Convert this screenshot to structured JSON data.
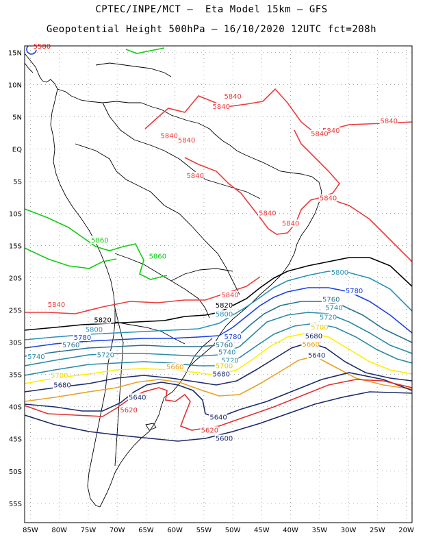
{
  "header": {
    "line1": "CPTEC/INPE/MCT –  Eta Model 15km – GFS",
    "line2": "Geopotential Height 500hPa – 16/10/2020 12UTC fct=208h"
  },
  "map": {
    "lon_range": [
      -86,
      -19
    ],
    "lat_range": [
      -58,
      16
    ],
    "lat_ticks": [
      "15N",
      "10N",
      "5N",
      "EQ",
      "5S",
      "10S",
      "15S",
      "20S",
      "25S",
      "30S",
      "35S",
      "40S",
      "45S",
      "50S",
      "55S"
    ],
    "lon_ticks": [
      "85W",
      "80W",
      "75W",
      "70W",
      "65W",
      "60W",
      "55W",
      "50W",
      "45W",
      "40W",
      "35W",
      "30W",
      "25W",
      "20W"
    ],
    "colors": {
      "5580": "#ff2020",
      "5600": "#1a2a6a",
      "5620": "#e03030",
      "5640": "#1a2a6a",
      "5660": "#e8a020",
      "5680": "#1a2a6a",
      "5700": "#ffee00",
      "5720": "#2a8aa8",
      "5740": "#2a8aa8",
      "5760": "#2a7090",
      "5780": "#1a40e0",
      "5800": "#2a90b8",
      "5820": "#000000",
      "5840": "#ee3a3a",
      "5860": "#00cc00"
    },
    "contour_labels": [
      {
        "text": "5840",
        "lon": -51.5,
        "lat": 7.8,
        "level": "5840"
      },
      {
        "text": "5840",
        "lon": -53.5,
        "lat": 6.2,
        "level": "5840"
      },
      {
        "text": "5840",
        "lon": -24.5,
        "lat": 4.0,
        "level": "5840"
      },
      {
        "text": "5840",
        "lon": -34.5,
        "lat": 2.5,
        "level": "5840"
      },
      {
        "text": "5840",
        "lon": -36.5,
        "lat": 2.0,
        "level": "5840"
      },
      {
        "text": "5840",
        "lon": -62.5,
        "lat": 1.7,
        "level": "5840"
      },
      {
        "text": "5840",
        "lon": -59.5,
        "lat": 1.0,
        "level": "5840"
      },
      {
        "text": "5840",
        "lon": -58.0,
        "lat": -4.5,
        "level": "5840"
      },
      {
        "text": "5840",
        "lon": -35.0,
        "lat": -8.0,
        "level": "5840"
      },
      {
        "text": "5840",
        "lon": -45.5,
        "lat": -10.3,
        "level": "5840"
      },
      {
        "text": "5840",
        "lon": -41.5,
        "lat": -11.9,
        "level": "5840"
      },
      {
        "text": "5840",
        "lon": -82.0,
        "lat": -24.5,
        "level": "5840"
      },
      {
        "text": "5840",
        "lon": -52.0,
        "lat": -23.0,
        "level": "5840"
      },
      {
        "text": "5860",
        "lon": -74.5,
        "lat": -14.5,
        "level": "5860"
      },
      {
        "text": "5860",
        "lon": -64.5,
        "lat": -17.0,
        "level": "5860"
      },
      {
        "text": "5800",
        "lon": -33.0,
        "lat": -19.5,
        "level": "5800"
      },
      {
        "text": "5780",
        "lon": -30.5,
        "lat": -22.4,
        "level": "5780"
      },
      {
        "text": "5760",
        "lon": -34.5,
        "lat": -23.7,
        "level": "5760"
      },
      {
        "text": "5740",
        "lon": -34.0,
        "lat": -25.0,
        "level": "5740"
      },
      {
        "text": "5720",
        "lon": -35.0,
        "lat": -26.5,
        "level": "5720"
      },
      {
        "text": "5700",
        "lon": -36.5,
        "lat": -28.0,
        "level": "5700"
      },
      {
        "text": "5680",
        "lon": -37.5,
        "lat": -29.4,
        "level": "5680"
      },
      {
        "text": "5660",
        "lon": -38.0,
        "lat": -30.7,
        "level": "5660"
      },
      {
        "text": "5640",
        "lon": -37.0,
        "lat": -32.4,
        "level": "5640"
      },
      {
        "text": "5820",
        "lon": -53.0,
        "lat": -24.6,
        "level": "5820"
      },
      {
        "text": "5800",
        "lon": -53.0,
        "lat": -26.0,
        "level": "5800"
      },
      {
        "text": "5820",
        "lon": -74.0,
        "lat": -26.9,
        "level": "5820"
      },
      {
        "text": "5800",
        "lon": -75.5,
        "lat": -28.4,
        "level": "5800"
      },
      {
        "text": "5780",
        "lon": -77.5,
        "lat": -29.6,
        "level": "5780"
      },
      {
        "text": "5760",
        "lon": -79.5,
        "lat": -30.8,
        "level": "5760"
      },
      {
        "text": "5720",
        "lon": -73.5,
        "lat": -32.3,
        "level": "5720"
      },
      {
        "text": "5740",
        "lon": -85.5,
        "lat": -32.6,
        "level": "5740"
      },
      {
        "text": "5780",
        "lon": -51.5,
        "lat": -29.5,
        "level": "5780"
      },
      {
        "text": "5760",
        "lon": -53.0,
        "lat": -30.8,
        "level": "5760"
      },
      {
        "text": "5740",
        "lon": -52.5,
        "lat": -31.9,
        "level": "5740"
      },
      {
        "text": "5720",
        "lon": -52.0,
        "lat": -33.2,
        "level": "5720"
      },
      {
        "text": "5700",
        "lon": -53.0,
        "lat": -34.0,
        "level": "5700"
      },
      {
        "text": "5680",
        "lon": -53.5,
        "lat": -35.3,
        "level": "5680"
      },
      {
        "text": "5660",
        "lon": -61.5,
        "lat": -34.2,
        "level": "5660"
      },
      {
        "text": "5700",
        "lon": -81.5,
        "lat": -35.5,
        "level": "5700"
      },
      {
        "text": "5680",
        "lon": -81.0,
        "lat": -37.0,
        "level": "5680"
      },
      {
        "text": "5640",
        "lon": -68.0,
        "lat": -38.9,
        "level": "5640"
      },
      {
        "text": "5620",
        "lon": -69.5,
        "lat": -40.9,
        "level": "5620"
      },
      {
        "text": "5640",
        "lon": -54.0,
        "lat": -42.0,
        "level": "5640"
      },
      {
        "text": "5620",
        "lon": -55.5,
        "lat": -44.0,
        "level": "5620"
      },
      {
        "text": "5600",
        "lon": -53.0,
        "lat": -45.3,
        "level": "5600"
      },
      {
        "text": "5580",
        "lon": -84.5,
        "lat": 15.6,
        "level": "5580"
      }
    ]
  }
}
